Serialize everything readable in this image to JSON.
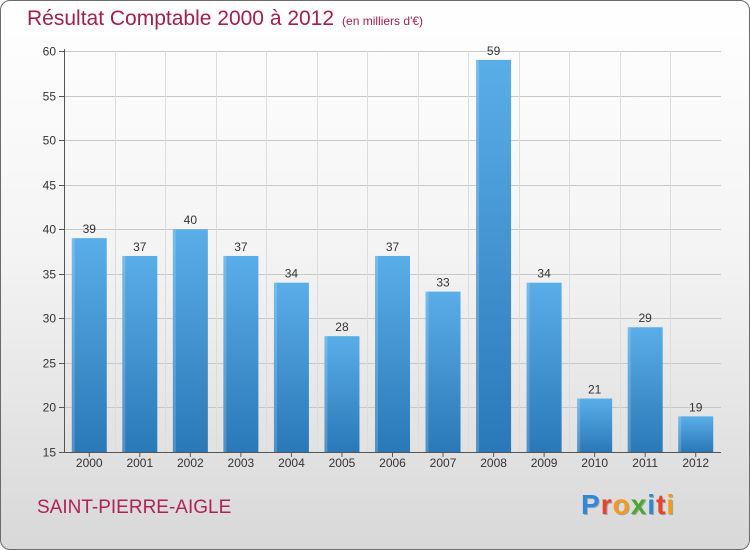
{
  "header": {
    "title": "Résultat Comptable 2000 à 2012",
    "unit": "(en milliers d'€)"
  },
  "footer": {
    "place": "SAINT-PIERRE-AIGLE",
    "logo_letters": [
      {
        "ch": "P",
        "color": "#2e8ad8"
      },
      {
        "ch": "r",
        "color": "#e8432c"
      },
      {
        "ch": "o",
        "color": "#f29a1d"
      },
      {
        "ch": "x",
        "color": "#4aa832"
      },
      {
        "ch": "i",
        "color": "#2e8ad8"
      },
      {
        "ch": "t",
        "color": "#e8432c"
      },
      {
        "ch": "i",
        "color": "#f29a1d"
      }
    ]
  },
  "colors": {
    "bar_top": "#5aaee8",
    "bar_bottom": "#2a78b8",
    "title": "#a0204f"
  },
  "chart_data": {
    "type": "bar",
    "title": "Résultat Comptable 2000 à 2012",
    "subtitle": "(en milliers d'€)",
    "categories": [
      "2000",
      "2001",
      "2002",
      "2003",
      "2004",
      "2005",
      "2006",
      "2007",
      "2008",
      "2009",
      "2010",
      "2011",
      "2012"
    ],
    "values": [
      39,
      37,
      40,
      37,
      34,
      28,
      37,
      33,
      59,
      34,
      21,
      29,
      19
    ],
    "ylim": [
      15,
      60
    ],
    "yticks": [
      15,
      20,
      25,
      30,
      35,
      40,
      45,
      50,
      55,
      60
    ],
    "grid": true,
    "data_labels": true
  }
}
